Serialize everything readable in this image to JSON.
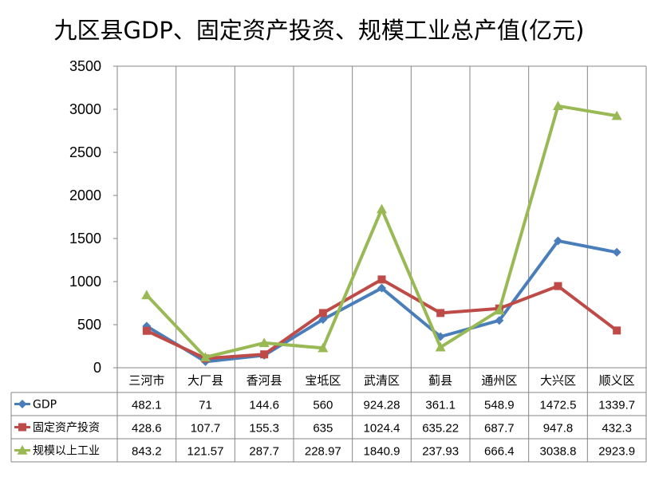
{
  "chart_data": {
    "type": "line",
    "title": "九区县GDP、固定资产投资、规模工业总产值(亿元)",
    "categories": [
      "三河市",
      "大厂县",
      "香河县",
      "宝坻区",
      "武清区",
      "蓟县",
      "通州区",
      "大兴区",
      "顺义区"
    ],
    "series": [
      {
        "name": "GDP",
        "color": "#4a7ebb",
        "marker": "diamond",
        "values": [
          482.1,
          71,
          144.6,
          560,
          924.28,
          361.1,
          548.9,
          1472.5,
          1339.7
        ],
        "labels": [
          "482.1",
          "71",
          "144.6",
          "560",
          "924.28",
          "361.1",
          "548.9",
          "1472.5",
          "1339.7"
        ]
      },
      {
        "name": "固定资产投资",
        "color": "#be4b48",
        "marker": "square",
        "values": [
          428.6,
          107.7,
          155.3,
          635,
          1024.4,
          635.22,
          687.7,
          947.8,
          432.3
        ],
        "labels": [
          "428.6",
          "107.7",
          "155.3",
          "635",
          "1024.4",
          "635.22",
          "687.7",
          "947.8",
          "432.3"
        ]
      },
      {
        "name": "规模以上工业",
        "color": "#98b954",
        "marker": "triangle",
        "values": [
          843.2,
          121.57,
          287.7,
          228.97,
          1840.9,
          237.93,
          666.4,
          3038.8,
          2923.9
        ],
        "labels": [
          "843.2",
          "121.57",
          "287.7",
          "228.97",
          "1840.9",
          "237.93",
          "666.4",
          "3038.8",
          "2923.9"
        ]
      }
    ],
    "ylim": [
      0,
      3500
    ],
    "yticks": [
      0,
      500,
      1000,
      1500,
      2000,
      2500,
      3000,
      3500
    ],
    "ytick_labels": [
      "0",
      "500",
      "1000",
      "1500",
      "2000",
      "2500",
      "3000",
      "3500"
    ],
    "grid": "vertical",
    "legend": "data-table"
  }
}
